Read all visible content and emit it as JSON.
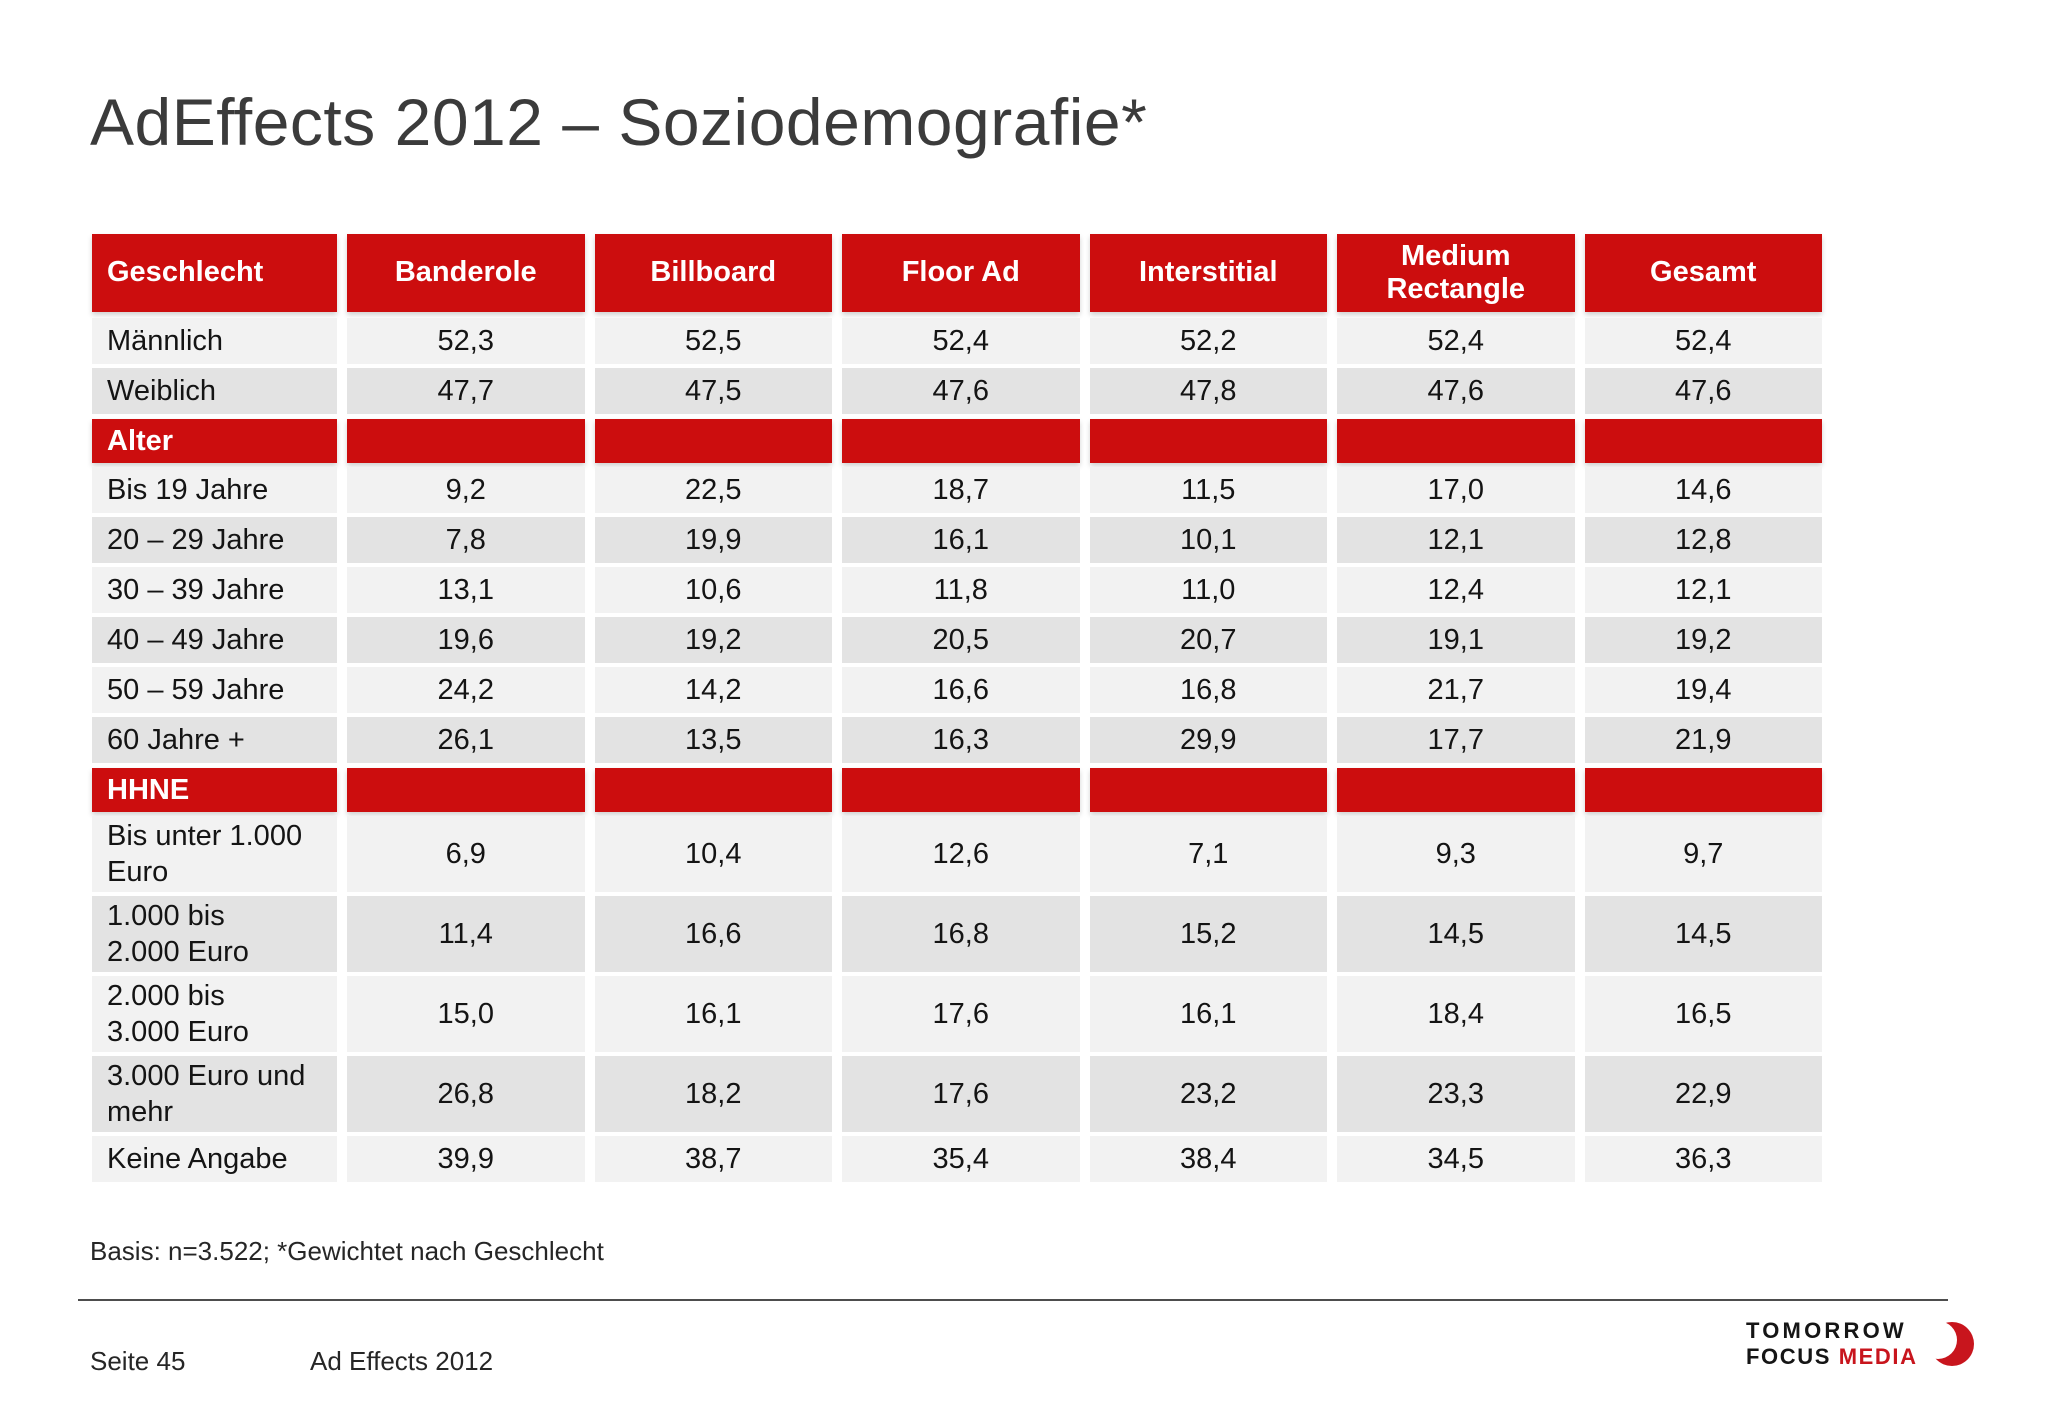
{
  "page": {
    "title": "AdEffects 2012 – Soziodemografie*"
  },
  "table": {
    "columns": [
      "Geschlecht",
      "Banderole",
      "Billboard",
      "Floor Ad",
      "Interstitial",
      "Medium Rectangle",
      "Gesamt"
    ],
    "sections": [
      {
        "header": null,
        "rows": [
          {
            "label": "Männlich",
            "values": [
              "52,3",
              "52,5",
              "52,4",
              "52,2",
              "52,4",
              "52,4"
            ]
          },
          {
            "label": "Weiblich",
            "values": [
              "47,7",
              "47,5",
              "47,6",
              "47,8",
              "47,6",
              "47,6"
            ]
          }
        ]
      },
      {
        "header": "Alter",
        "rows": [
          {
            "label": "Bis 19 Jahre",
            "values": [
              "9,2",
              "22,5",
              "18,7",
              "11,5",
              "17,0",
              "14,6"
            ]
          },
          {
            "label": "20 – 29 Jahre",
            "values": [
              "7,8",
              "19,9",
              "16,1",
              "10,1",
              "12,1",
              "12,8"
            ]
          },
          {
            "label": "30 – 39 Jahre",
            "values": [
              "13,1",
              "10,6",
              "11,8",
              "11,0",
              "12,4",
              "12,1"
            ]
          },
          {
            "label": "40 – 49 Jahre",
            "values": [
              "19,6",
              "19,2",
              "20,5",
              "20,7",
              "19,1",
              "19,2"
            ]
          },
          {
            "label": "50 – 59 Jahre",
            "values": [
              "24,2",
              "14,2",
              "16,6",
              "16,8",
              "21,7",
              "19,4"
            ]
          },
          {
            "label": "60 Jahre +",
            "values": [
              "26,1",
              "13,5",
              "16,3",
              "29,9",
              "17,7",
              "21,9"
            ]
          }
        ]
      },
      {
        "header": "HHNE",
        "rows": [
          {
            "label": "Bis unter 1.000\nEuro",
            "values": [
              "6,9",
              "10,4",
              "12,6",
              "7,1",
              "9,3",
              "9,7"
            ]
          },
          {
            "label": "1.000 bis\n2.000 Euro",
            "values": [
              "11,4",
              "16,6",
              "16,8",
              "15,2",
              "14,5",
              "14,5"
            ]
          },
          {
            "label": "2.000 bis\n3.000 Euro",
            "values": [
              "15,0",
              "16,1",
              "17,6",
              "16,1",
              "18,4",
              "16,5"
            ]
          },
          {
            "label": "3.000 Euro und\nmehr",
            "values": [
              "26,8",
              "18,2",
              "17,6",
              "23,2",
              "23,3",
              "22,9"
            ]
          },
          {
            "label": "Keine Angabe",
            "values": [
              "39,9",
              "38,7",
              "35,4",
              "38,4",
              "34,5",
              "36,3"
            ]
          }
        ]
      }
    ]
  },
  "footnote": "Basis: n=3.522; *Gewichtet nach Geschlecht",
  "footer": {
    "page_label": "Seite 45",
    "doc_label": "Ad Effects 2012"
  },
  "logo": {
    "line1": "TOMORROW",
    "line2_black": "FOCUS",
    "line2_red": "MEDIA",
    "icon": "crescent-icon"
  },
  "colors": {
    "accent_red": "#CC0D0E",
    "row_light": "#F2F2F2",
    "row_dark": "#E3E3E3",
    "logo_red": "#C8151D",
    "title_text": "#3B3B3B"
  }
}
